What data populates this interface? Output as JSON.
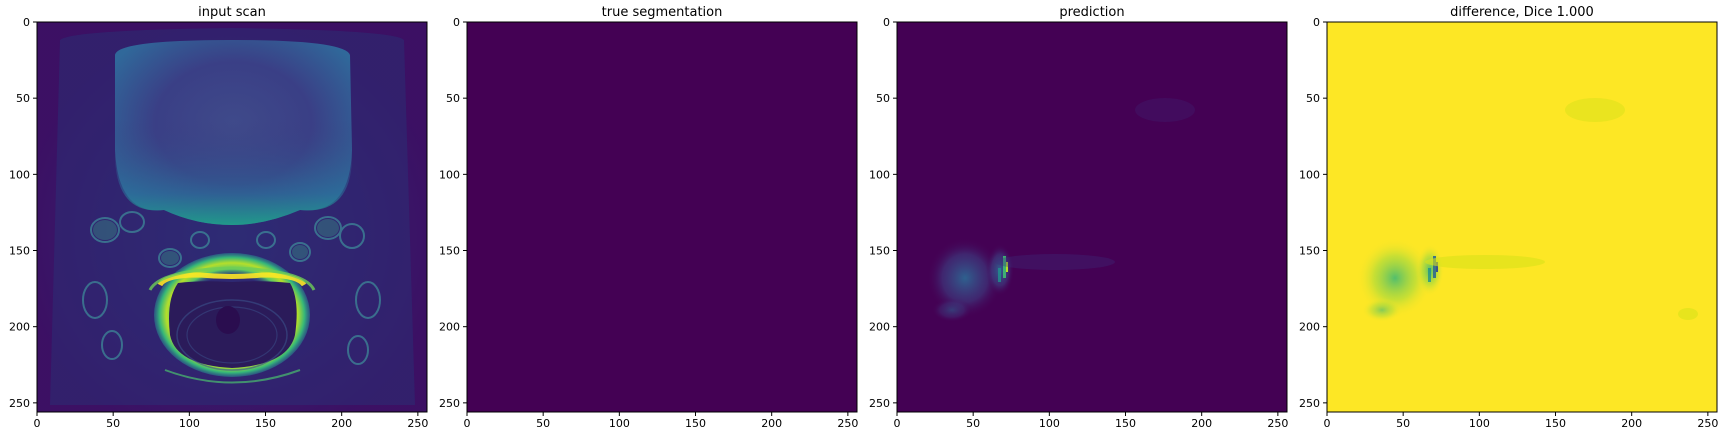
{
  "figure": {
    "background": "#ffffff"
  },
  "panels": [
    {
      "title": "input scan",
      "image": "mri-input-scan"
    },
    {
      "title": "true segmentation",
      "image": "uniform-dark-purple"
    },
    {
      "title": "prediction",
      "image": "dark-purple-with-faint-activation"
    },
    {
      "title": "difference, Dice 1.000",
      "image": "yellow-with-faint-speckles"
    }
  ],
  "chart_data": [
    {
      "type": "heatmap",
      "title": "input scan",
      "xlabel": "",
      "ylabel": "",
      "xlim": [
        0,
        256
      ],
      "ylim": [
        256,
        0
      ],
      "xticks": [
        0,
        50,
        100,
        150,
        200,
        250
      ],
      "yticks": [
        0,
        50,
        100,
        150,
        200,
        250
      ],
      "colormap": "viridis",
      "grid": false
    },
    {
      "type": "heatmap",
      "title": "true segmentation",
      "xlabel": "",
      "ylabel": "",
      "xlim": [
        0,
        256
      ],
      "ylim": [
        256,
        0
      ],
      "xticks": [
        0,
        50,
        100,
        150,
        200,
        250
      ],
      "yticks": [
        0,
        50,
        100,
        150,
        200,
        250
      ],
      "colormap": "viridis",
      "grid": false
    },
    {
      "type": "heatmap",
      "title": "prediction",
      "xlabel": "",
      "ylabel": "",
      "xlim": [
        0,
        256
      ],
      "ylim": [
        256,
        0
      ],
      "xticks": [
        0,
        50,
        100,
        150,
        200,
        250
      ],
      "yticks": [
        0,
        50,
        100,
        150,
        200,
        250
      ],
      "colormap": "viridis",
      "grid": false
    },
    {
      "type": "heatmap",
      "title": "difference, Dice 1.000",
      "xlabel": "",
      "ylabel": "",
      "xlim": [
        0,
        256
      ],
      "ylim": [
        256,
        0
      ],
      "xticks": [
        0,
        50,
        100,
        150,
        200,
        250
      ],
      "yticks": [
        0,
        50,
        100,
        150,
        200,
        250
      ],
      "colormap": "viridis",
      "grid": false
    }
  ],
  "colors": {
    "viridis_dark": "#440154",
    "viridis_blue": "#3b528b",
    "viridis_teal": "#21918c",
    "viridis_green": "#5ec962",
    "viridis_yellow": "#fde725",
    "axis": "#000000"
  }
}
